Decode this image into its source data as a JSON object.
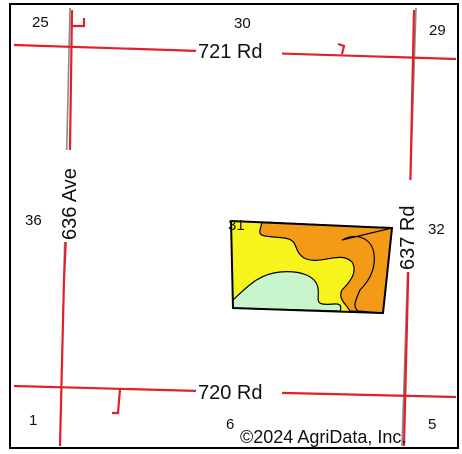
{
  "map": {
    "roads": {
      "north": "721 Rd",
      "south": "720 Rd",
      "west": "636 Ave",
      "east": "637 Rd"
    },
    "sections": {
      "nw": "25",
      "n_center": "30",
      "ne": "29",
      "w_center": "36",
      "field_corner": "31",
      "e_center": "32",
      "sw": "1",
      "s_center": "6",
      "se": "5"
    },
    "copyright": "©2024 AgriData, Inc.",
    "colors": {
      "road": "#e0202a",
      "section_line": "#8a8a8a",
      "soil_orange": "#f39a16",
      "soil_yellow": "#f6f41c",
      "soil_green": "#c8f5cc"
    }
  }
}
